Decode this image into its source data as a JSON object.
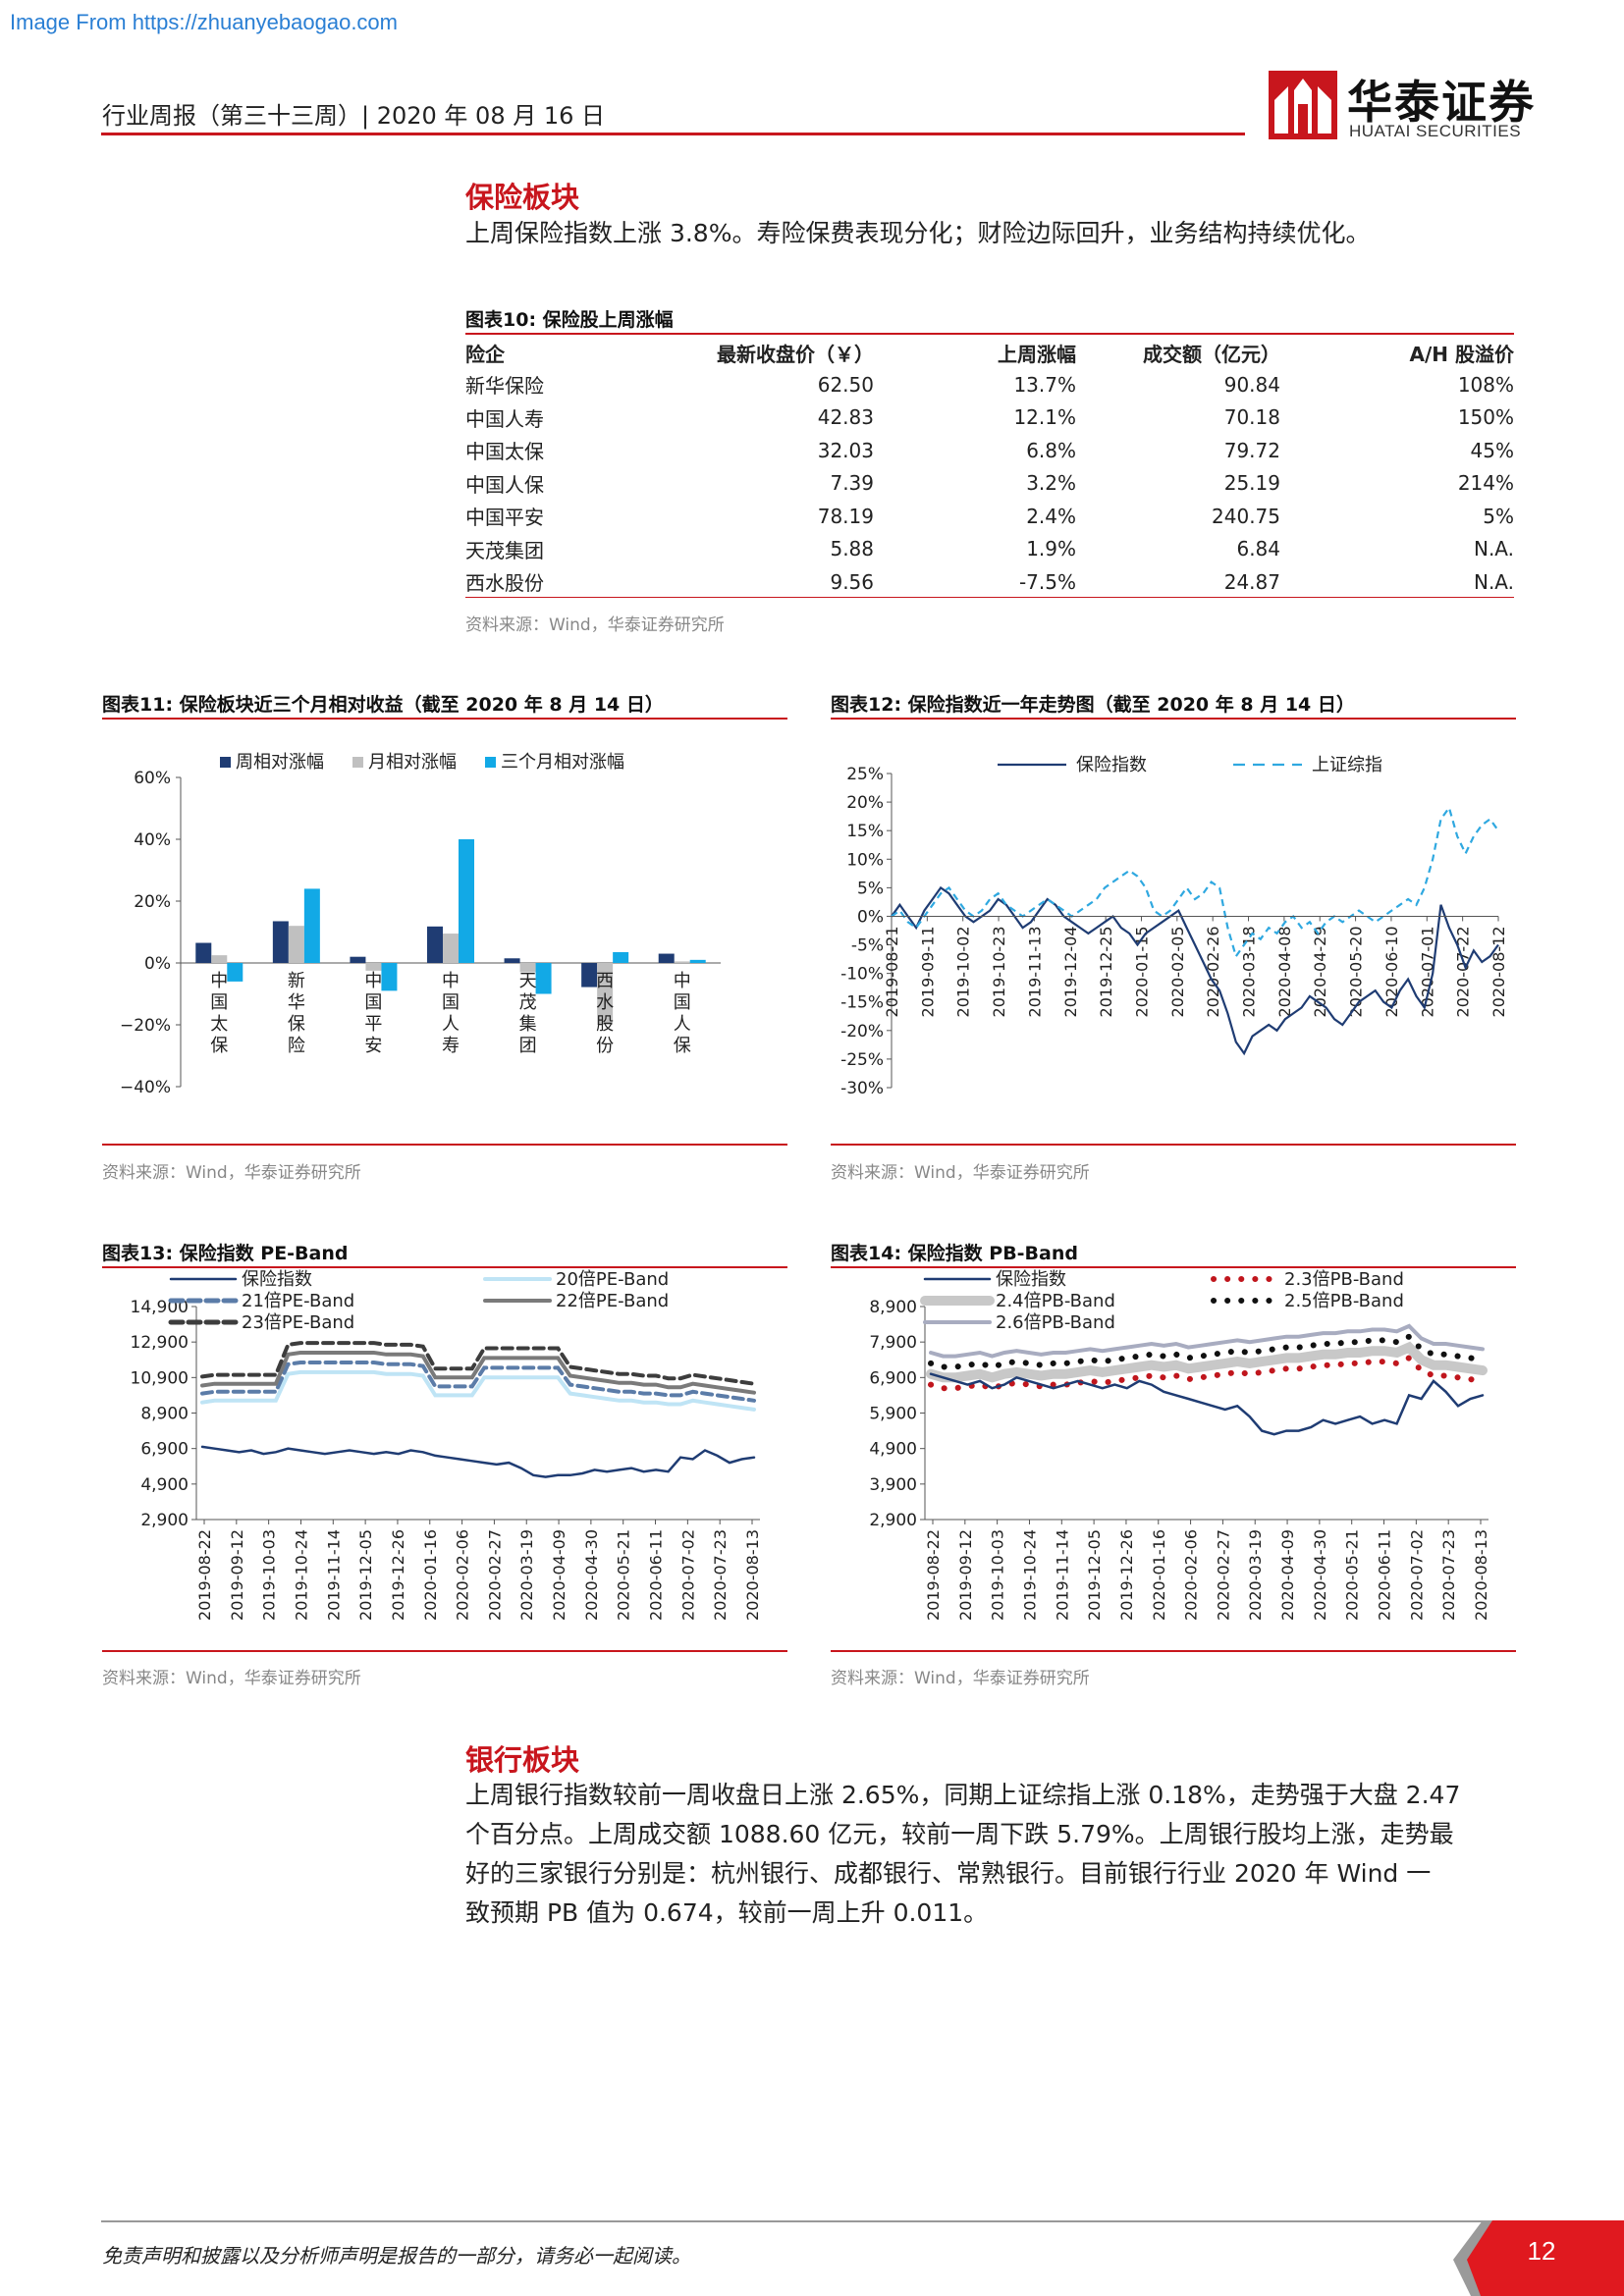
{
  "watermark": "Image From https://zhuanyebaogao.com",
  "header": {
    "title": "行业周报（第三十三周）| 2020 年 08 月 16 日",
    "logo_cn": "华泰证券",
    "logo_en": "HUATAI SECURITIES",
    "brand_color": "#c8161d"
  },
  "insurance": {
    "section_title": "保险板块",
    "summary": "上周保险指数上涨 3.8%。寿险保费表现分化；财险边际回升，业务结构持续优化。",
    "table": {
      "title": "图表10:   保险股上周涨幅",
      "columns": [
        "险企",
        "最新收盘价（￥）",
        "上周涨幅",
        "成交额（亿元）",
        "A/H 股溢价"
      ],
      "rows": [
        [
          "新华保险",
          "62.50",
          "13.7%",
          "90.84",
          "108%"
        ],
        [
          "中国人寿",
          "42.83",
          "12.1%",
          "70.18",
          "150%"
        ],
        [
          "中国太保",
          "32.03",
          "6.8%",
          "79.72",
          "45%"
        ],
        [
          "中国人保",
          "7.39",
          "3.2%",
          "25.19",
          "214%"
        ],
        [
          "中国平安",
          "78.19",
          "2.4%",
          "240.75",
          "5%"
        ],
        [
          "天茂集团",
          "5.88",
          "1.9%",
          "6.84",
          "N.A."
        ],
        [
          "西水股份",
          "9.56",
          "-7.5%",
          "24.87",
          "N.A."
        ]
      ],
      "source": "资料来源：Wind，华泰证券研究所"
    }
  },
  "figures": {
    "fig11": {
      "title": "图表11:   保险板块近三个月相对收益（截至 2020 年 8 月 14 日）",
      "source": "资料来源：Wind，华泰证券研究所"
    },
    "fig12": {
      "title": "图表12:   保险指数近一年走势图（截至 2020 年 8 月 14 日）",
      "source": "资料来源：Wind，华泰证券研究所"
    },
    "fig13": {
      "title": "图表13:   保险指数 PE-Band",
      "source": "资料来源：Wind，华泰证券研究所"
    },
    "fig14": {
      "title": "图表14:   保险指数 PB-Band",
      "source": "资料来源：Wind，华泰证券研究所"
    }
  },
  "bank": {
    "section_title": "银行板块",
    "lines": [
      "上周银行指数较前一周收盘日上涨 2.65%，同期上证综指上涨 0.18%，走势强于大盘 2.47",
      "个百分点。上周成交额 1088.60 亿元，较前一周下跌 5.79%。上周银行股均上涨，走势最",
      "好的三家银行分别是：杭州银行、成都银行、常熟银行。目前银行行业 2020 年 Wind 一",
      "致预期 PB 值为 0.674，较前一周上升 0.011。"
    ]
  },
  "footer": {
    "disclaimer": "免责声明和披露以及分析师声明是报告的一部分，请务必一起阅读。",
    "page": "12"
  },
  "chart_data": [
    {
      "id": "fig11",
      "type": "bar",
      "categories": [
        "中国太保",
        "新华保险",
        "中国平安",
        "中国人寿",
        "天茂集团",
        "西水股份",
        "中国人保"
      ],
      "series": [
        {
          "name": "周相对涨幅",
          "color": "#1f3c73",
          "values": [
            6.5,
            13.5,
            2.0,
            11.8,
            1.5,
            -7.8,
            3.0
          ]
        },
        {
          "name": "月相对涨幅",
          "color": "#c0c0c0",
          "values": [
            2.5,
            12.0,
            -2.5,
            9.5,
            -3.0,
            -20.0,
            0.5
          ]
        },
        {
          "name": "三个月相对涨幅",
          "color": "#12a9e6",
          "values": [
            -6.0,
            24.0,
            -9.0,
            40.0,
            -10.0,
            3.5,
            1.0
          ]
        }
      ],
      "ylim": [
        -40,
        60
      ],
      "yticks": [
        "60%",
        "40%",
        "20%",
        "0%",
        "−20%",
        "−40%"
      ],
      "ytick_values": [
        60,
        40,
        20,
        0,
        -20,
        -40
      ],
      "legend": "top"
    },
    {
      "id": "fig12",
      "type": "line",
      "x_ticks": [
        "2019-08-21",
        "2019-09-11",
        "2019-10-02",
        "2019-10-23",
        "2019-11-13",
        "2019-12-04",
        "2019-12-25",
        "2020-01-15",
        "2020-02-05",
        "2020-02-26",
        "2020-03-18",
        "2020-04-08",
        "2020-04-29",
        "2020-05-20",
        "2020-06-10",
        "2020-07-01",
        "2020-07-22",
        "2020-08-12"
      ],
      "yticks": [
        "25%",
        "20%",
        "15%",
        "10%",
        "5%",
        "0%",
        "-5%",
        "-10%",
        "-15%",
        "-20%",
        "-25%",
        "-30%"
      ],
      "ytick_values": [
        25,
        20,
        15,
        10,
        5,
        0,
        -5,
        -10,
        -15,
        -20,
        -25,
        -30
      ],
      "ylim": [
        -30,
        25
      ],
      "series": [
        {
          "name": "保险指数",
          "color": "#1f3c73",
          "dash": false,
          "values": [
            0,
            2,
            0,
            -2,
            1,
            3,
            5,
            4,
            2,
            0,
            -1,
            0,
            1,
            3,
            2,
            0,
            -2,
            -1,
            1,
            3,
            2,
            0,
            -1,
            -2,
            -3,
            -2,
            -1,
            0,
            -2,
            -3,
            -5,
            -3,
            -2,
            -1,
            0,
            1,
            -2,
            -5,
            -8,
            -11,
            -13,
            -17,
            -22,
            -24,
            -21,
            -20,
            -19,
            -20,
            -18,
            -17,
            -16,
            -14,
            -15,
            -16,
            -18,
            -19,
            -17,
            -15,
            -14,
            -13,
            -15,
            -16,
            -13,
            -11,
            -14,
            -16,
            -10,
            2,
            -2,
            -5,
            -9,
            -6,
            -8,
            -7,
            -5
          ]
        },
        {
          "name": "上证综指",
          "color": "#2fa8e0",
          "dash": true,
          "values": [
            0,
            1,
            -1,
            -2,
            0,
            2,
            4,
            5,
            3,
            1,
            0,
            1,
            3,
            4,
            2,
            1,
            0,
            1,
            2,
            3,
            2,
            1,
            0,
            1,
            2,
            3,
            5,
            6,
            7,
            8,
            7,
            5,
            1,
            0,
            1,
            3,
            5,
            3,
            4,
            6,
            5,
            -2,
            -7,
            -5,
            -3,
            -4,
            -2,
            -3,
            -1,
            0,
            -2,
            -1,
            -3,
            -1,
            0,
            -1,
            0,
            1,
            0,
            -1,
            0,
            1,
            2,
            3,
            2,
            5,
            10,
            17,
            19,
            14,
            11,
            14,
            16,
            17,
            15
          ]
        }
      ],
      "legend": "top"
    },
    {
      "id": "fig13",
      "type": "line",
      "x_ticks": [
        "2019-08-22",
        "2019-09-12",
        "2019-10-03",
        "2019-10-24",
        "2019-11-14",
        "2019-12-05",
        "2019-12-26",
        "2020-01-16",
        "2020-02-06",
        "2020-02-27",
        "2020-03-19",
        "2020-04-09",
        "2020-04-30",
        "2020-05-21",
        "2020-06-11",
        "2020-07-02",
        "2020-07-23",
        "2020-08-13"
      ],
      "yticks": [
        "14,900",
        "12,900",
        "10,900",
        "8,900",
        "6,900",
        "4,900",
        "2,900"
      ],
      "ytick_values": [
        14900,
        12900,
        10900,
        8900,
        6900,
        4900,
        2900
      ],
      "ylim": [
        2900,
        14900
      ],
      "price": {
        "name": "保险指数",
        "color": "#1f3c73",
        "values": [
          7000,
          6900,
          6800,
          6700,
          6800,
          6600,
          6700,
          6900,
          6800,
          6700,
          6600,
          6700,
          6800,
          6700,
          6600,
          6700,
          6600,
          6800,
          6700,
          6500,
          6400,
          6300,
          6200,
          6100,
          6000,
          6100,
          5800,
          5400,
          5300,
          5400,
          5400,
          5500,
          5700,
          5600,
          5700,
          5800,
          5600,
          5700,
          5600,
          6400,
          6300,
          6800,
          6500,
          6100,
          6300,
          6400
        ]
      },
      "bands": [
        {
          "name": "20倍PE-Band",
          "color": "#bfe4f5",
          "style": "solid",
          "multiple": 20,
          "values": [
            9500,
            9600,
            9600,
            9600,
            9600,
            9600,
            9600,
            11100,
            11200,
            11200,
            11200,
            11200,
            11200,
            11200,
            11200,
            11100,
            11100,
            11100,
            11000,
            9900,
            9900,
            9900,
            9900,
            10900,
            10900,
            10900,
            10900,
            10900,
            10900,
            10900,
            10000,
            9900,
            9800,
            9700,
            9600,
            9600,
            9500,
            9500,
            9400,
            9400,
            9600,
            9500,
            9400,
            9300,
            9200,
            9100
          ]
        },
        {
          "name": "21倍PE-Band",
          "color": "#5b7ca8",
          "style": "dashed",
          "multiple": 21,
          "values": [
            10000,
            10100,
            10100,
            10100,
            10100,
            10100,
            10100,
            11650,
            11750,
            11750,
            11750,
            11750,
            11750,
            11750,
            11750,
            11650,
            11650,
            11650,
            11550,
            10400,
            10400,
            10400,
            10400,
            11450,
            11450,
            11450,
            11450,
            11450,
            11450,
            11450,
            10500,
            10400,
            10300,
            10200,
            10100,
            10100,
            10000,
            10000,
            9900,
            9900,
            10100,
            10000,
            9900,
            9800,
            9700,
            9600
          ]
        },
        {
          "name": "22倍PE-Band",
          "color": "#7a7a7a",
          "style": "solid",
          "multiple": 22,
          "values": [
            10450,
            10550,
            10550,
            10550,
            10550,
            10550,
            10550,
            12200,
            12300,
            12300,
            12300,
            12300,
            12300,
            12300,
            12300,
            12200,
            12200,
            12200,
            12100,
            10900,
            10900,
            10900,
            10900,
            12000,
            12000,
            12000,
            12000,
            12000,
            12000,
            12000,
            11000,
            10900,
            10800,
            10700,
            10600,
            10600,
            10500,
            10500,
            10350,
            10350,
            10550,
            10450,
            10350,
            10250,
            10150,
            10050
          ]
        },
        {
          "name": "23倍PE-Band",
          "color": "#3d3d3d",
          "style": "dashed",
          "multiple": 23,
          "values": [
            10950,
            11050,
            11050,
            11050,
            11050,
            11050,
            11050,
            12750,
            12850,
            12850,
            12850,
            12850,
            12850,
            12850,
            12850,
            12750,
            12750,
            12750,
            12650,
            11400,
            11400,
            11400,
            11400,
            12550,
            12550,
            12550,
            12550,
            12550,
            12550,
            12550,
            11500,
            11400,
            11300,
            11200,
            11100,
            11100,
            11000,
            11000,
            10850,
            10850,
            11050,
            10950,
            10850,
            10750,
            10650,
            10550
          ]
        }
      ],
      "legend": "top"
    },
    {
      "id": "fig14",
      "type": "line",
      "x_ticks": [
        "2019-08-22",
        "2019-09-12",
        "2019-10-03",
        "2019-10-24",
        "2019-11-14",
        "2019-12-05",
        "2019-12-26",
        "2020-01-16",
        "2020-02-06",
        "2020-02-27",
        "2020-03-19",
        "2020-04-09",
        "2020-04-30",
        "2020-05-21",
        "2020-06-11",
        "2020-07-02",
        "2020-07-23",
        "2020-08-13"
      ],
      "yticks": [
        "8,900",
        "7,900",
        "6,900",
        "5,900",
        "4,900",
        "3,900",
        "2,900"
      ],
      "ytick_values": [
        8900,
        7900,
        6900,
        5900,
        4900,
        3900,
        2900
      ],
      "ylim": [
        2900,
        8900
      ],
      "price": {
        "name": "保险指数",
        "color": "#1f3c73",
        "values": [
          7000,
          6900,
          6800,
          6700,
          6800,
          6600,
          6700,
          6900,
          6800,
          6700,
          6600,
          6700,
          6800,
          6700,
          6600,
          6700,
          6600,
          6800,
          6700,
          6500,
          6400,
          6300,
          6200,
          6100,
          6000,
          6100,
          5800,
          5400,
          5300,
          5400,
          5400,
          5500,
          5700,
          5600,
          5700,
          5800,
          5600,
          5700,
          5600,
          6400,
          6300,
          6800,
          6500,
          6100,
          6300,
          6400
        ]
      },
      "bands": [
        {
          "name": "2.3倍PB-Band",
          "color": "#c0161d",
          "style": "dotted",
          "multiple": 2.3,
          "values": [
            6700,
            6600,
            6600,
            6650,
            6700,
            6600,
            6700,
            6750,
            6700,
            6650,
            6700,
            6700,
            6750,
            6800,
            6750,
            6800,
            6850,
            6900,
            6950,
            6900,
            6950,
            6850,
            6900,
            6950,
            7000,
            7050,
            7000,
            7050,
            7100,
            7150,
            7150,
            7200,
            7250,
            7250,
            7300,
            7300,
            7350,
            7350,
            7300,
            7450,
            7100,
            6950,
            6950,
            6900,
            6850,
            6800
          ]
        },
        {
          "name": "2.4倍PB-Band",
          "color": "#c8c8c8",
          "style": "thick",
          "multiple": 2.4,
          "values": [
            7000,
            6900,
            6900,
            6950,
            7000,
            6900,
            7000,
            7050,
            7000,
            6950,
            7000,
            7000,
            7050,
            7100,
            7050,
            7100,
            7150,
            7200,
            7250,
            7200,
            7250,
            7150,
            7200,
            7250,
            7300,
            7350,
            7300,
            7350,
            7400,
            7450,
            7450,
            7500,
            7550,
            7550,
            7600,
            7600,
            7650,
            7650,
            7600,
            7750,
            7400,
            7250,
            7250,
            7200,
            7150,
            7100
          ]
        },
        {
          "name": "2.5倍PB-Band",
          "color": "#111111",
          "style": "dotted",
          "multiple": 2.5,
          "values": [
            7300,
            7200,
            7200,
            7250,
            7300,
            7200,
            7300,
            7350,
            7300,
            7250,
            7300,
            7300,
            7350,
            7400,
            7350,
            7400,
            7450,
            7500,
            7550,
            7500,
            7550,
            7450,
            7500,
            7550,
            7600,
            7650,
            7600,
            7650,
            7700,
            7750,
            7750,
            7800,
            7850,
            7850,
            7900,
            7900,
            7950,
            7950,
            7900,
            8050,
            7700,
            7550,
            7550,
            7500,
            7450,
            7400
          ]
        },
        {
          "name": "2.6倍PB-Band",
          "color": "#a8acc0",
          "style": "solid",
          "multiple": 2.6,
          "values": [
            7600,
            7500,
            7500,
            7550,
            7600,
            7500,
            7600,
            7650,
            7600,
            7550,
            7600,
            7600,
            7650,
            7700,
            7650,
            7700,
            7750,
            7800,
            7850,
            7800,
            7850,
            7750,
            7800,
            7850,
            7900,
            7950,
            7900,
            7950,
            8000,
            8050,
            8050,
            8100,
            8150,
            8150,
            8200,
            8200,
            8250,
            8250,
            8200,
            8350,
            8000,
            7850,
            7850,
            7800,
            7750,
            7700
          ]
        }
      ],
      "legend": "top"
    }
  ]
}
